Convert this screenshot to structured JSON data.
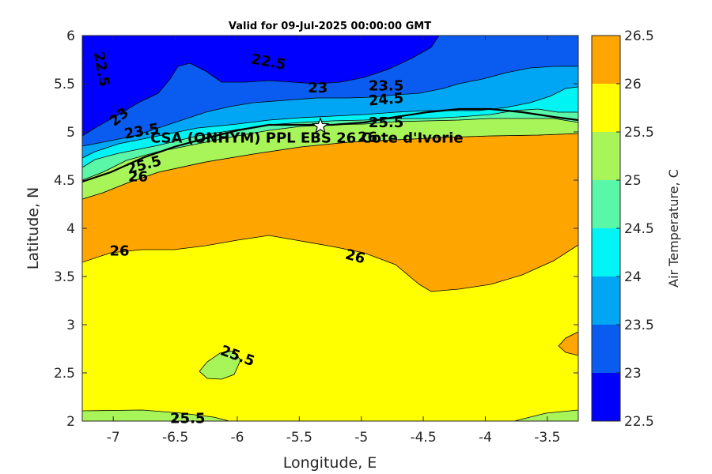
{
  "chart_data": {
    "type": "heatmap",
    "subtype": "filled-contour",
    "title": "Valid for 09-Jul-2025 00:00:00 GMT",
    "xlabel": "Longitude, E",
    "ylabel": "Latitude, N",
    "colorbar_label": "Air Temperature, C",
    "xlim": [
      -7.25,
      -3.25
    ],
    "ylim": [
      2,
      6
    ],
    "x_ticks": [
      -7,
      -6.5,
      -6,
      -5.5,
      -5,
      -4.5,
      -4,
      -3.5
    ],
    "y_ticks": [
      2,
      2.5,
      3,
      3.5,
      4,
      4.5,
      5,
      5.5,
      6
    ],
    "levels": [
      22.5,
      23,
      23.5,
      24,
      24.5,
      25,
      25.5,
      26,
      26.5
    ],
    "level_colors": [
      "#0000ff",
      "#0a5cf0",
      "#00a5f4",
      "#00f4f4",
      "#59f7a7",
      "#a8f559",
      "#ffff00",
      "#ffa500",
      "#ff5700"
    ],
    "colorbar_ticks": [
      "22.5",
      "23",
      "23.5",
      "24",
      "24.5",
      "25",
      "25.5",
      "26",
      "26.5"
    ],
    "station": {
      "label": "CSA (ONHYM) PPL EBS 26 Cote d'Ivorie",
      "lon": -5.33,
      "lat": 5.06
    },
    "contour_labels": [
      {
        "text": "22.5",
        "lon": -7.1,
        "lat": 5.65,
        "rotate": 80
      },
      {
        "text": "22.5",
        "lon": -5.75,
        "lat": 5.72,
        "rotate": 10
      },
      {
        "text": "23",
        "lon": -6.95,
        "lat": 5.15,
        "rotate": -40
      },
      {
        "text": "23",
        "lon": -5.35,
        "lat": 5.45,
        "rotate": 0
      },
      {
        "text": "23.5",
        "lon": -6.77,
        "lat": 5.0,
        "rotate": -10
      },
      {
        "text": "23.5",
        "lon": -4.8,
        "lat": 5.47,
        "rotate": 0
      },
      {
        "text": "24.5",
        "lon": -4.8,
        "lat": 5.33,
        "rotate": -5
      },
      {
        "text": "25.5",
        "lon": -4.8,
        "lat": 5.09,
        "rotate": 0
      },
      {
        "text": "25.5",
        "lon": -6.75,
        "lat": 4.65,
        "rotate": -15
      },
      {
        "text": "26",
        "lon": -4.95,
        "lat": 4.94,
        "rotate": 0
      },
      {
        "text": "26",
        "lon": -6.8,
        "lat": 4.53,
        "rotate": 0
      },
      {
        "text": "26",
        "lon": -6.95,
        "lat": 3.76,
        "rotate": 0
      },
      {
        "text": "26",
        "lon": -5.05,
        "lat": 3.7,
        "rotate": 15
      },
      {
        "text": "25.5",
        "lon": -6.0,
        "lat": 2.67,
        "rotate": 20
      },
      {
        "text": "25.5",
        "lon": -6.4,
        "lat": 2.02,
        "rotate": 0
      }
    ]
  }
}
